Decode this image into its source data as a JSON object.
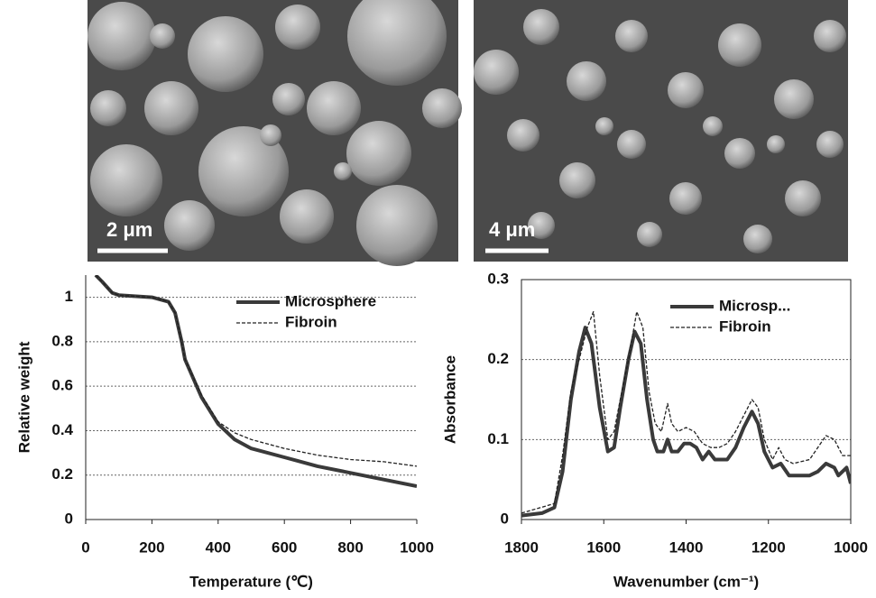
{
  "images": [
    {
      "scale_label": "2 μm"
    },
    {
      "scale_label": "4 μm"
    }
  ],
  "chart_data": [
    {
      "type": "line",
      "x_label": "Temperature (℃)",
      "y_label": "Relative weight",
      "xlim": [
        0,
        1000
      ],
      "xticks": [
        0,
        200,
        400,
        600,
        800,
        1000
      ],
      "ylim": [
        0,
        1.1
      ],
      "yticks": [
        0,
        0.2,
        0.4,
        0.6,
        0.8,
        1
      ],
      "grid": true,
      "legend": "upper right",
      "series": [
        {
          "name": "Microsphere",
          "color": "#3a3a3a",
          "width": 4,
          "dash": "none",
          "x": [
            30,
            50,
            80,
            100,
            200,
            250,
            270,
            290,
            300,
            350,
            400,
            450,
            500,
            600,
            700,
            800,
            900,
            1000
          ],
          "values": [
            1.1,
            1.07,
            1.02,
            1.01,
            1.0,
            0.98,
            0.93,
            0.8,
            0.72,
            0.55,
            0.43,
            0.36,
            0.32,
            0.28,
            0.24,
            0.21,
            0.18,
            0.15
          ]
        },
        {
          "name": "Fibroin",
          "color": "#222222",
          "width": 1.3,
          "dash": "4 2",
          "x": [
            30,
            50,
            80,
            100,
            200,
            250,
            270,
            290,
            300,
            350,
            400,
            450,
            500,
            600,
            700,
            800,
            900,
            1000
          ],
          "values": [
            1.1,
            1.07,
            1.02,
            1.01,
            1.0,
            0.98,
            0.93,
            0.8,
            0.72,
            0.56,
            0.44,
            0.39,
            0.36,
            0.32,
            0.29,
            0.27,
            0.26,
            0.24
          ]
        }
      ]
    },
    {
      "type": "line",
      "x_label": "Wavenumber (cm⁻¹)",
      "y_label": "Absorbance",
      "xlim": [
        1800,
        1000
      ],
      "xticks": [
        1800,
        1600,
        1400,
        1200,
        1000
      ],
      "ylim": [
        0,
        0.3
      ],
      "yticks": [
        0,
        0.1,
        0.2,
        0.3
      ],
      "grid": true,
      "legend": "upper right",
      "series": [
        {
          "name": "Microsp...",
          "color": "#3a3a3a",
          "width": 4,
          "dash": "none",
          "x": [
            1800,
            1750,
            1720,
            1700,
            1680,
            1660,
            1645,
            1630,
            1610,
            1590,
            1575,
            1560,
            1540,
            1525,
            1510,
            1495,
            1480,
            1470,
            1455,
            1445,
            1435,
            1420,
            1405,
            1390,
            1375,
            1360,
            1345,
            1330,
            1300,
            1280,
            1260,
            1240,
            1225,
            1210,
            1190,
            1170,
            1150,
            1100,
            1080,
            1060,
            1040,
            1030,
            1010,
            1000
          ],
          "values": [
            0.005,
            0.008,
            0.015,
            0.06,
            0.15,
            0.21,
            0.24,
            0.22,
            0.14,
            0.085,
            0.09,
            0.14,
            0.2,
            0.235,
            0.22,
            0.15,
            0.1,
            0.085,
            0.085,
            0.1,
            0.085,
            0.085,
            0.095,
            0.095,
            0.09,
            0.075,
            0.085,
            0.075,
            0.075,
            0.09,
            0.115,
            0.135,
            0.12,
            0.085,
            0.065,
            0.07,
            0.055,
            0.055,
            0.06,
            0.07,
            0.065,
            0.055,
            0.065,
            0.045
          ]
        },
        {
          "name": "Fibroin",
          "color": "#222222",
          "width": 1.3,
          "dash": "4 2",
          "x": [
            1800,
            1720,
            1700,
            1680,
            1660,
            1640,
            1625,
            1610,
            1590,
            1575,
            1560,
            1540,
            1520,
            1505,
            1490,
            1475,
            1460,
            1445,
            1435,
            1420,
            1400,
            1380,
            1360,
            1340,
            1320,
            1300,
            1280,
            1260,
            1240,
            1225,
            1210,
            1190,
            1175,
            1160,
            1140,
            1100,
            1080,
            1060,
            1040,
            1020,
            1000
          ],
          "values": [
            0.008,
            0.02,
            0.08,
            0.16,
            0.2,
            0.24,
            0.26,
            0.18,
            0.1,
            0.11,
            0.15,
            0.2,
            0.26,
            0.24,
            0.16,
            0.12,
            0.11,
            0.145,
            0.12,
            0.11,
            0.115,
            0.11,
            0.095,
            0.09,
            0.09,
            0.095,
            0.11,
            0.13,
            0.15,
            0.14,
            0.1,
            0.075,
            0.09,
            0.075,
            0.07,
            0.075,
            0.09,
            0.105,
            0.1,
            0.08,
            0.08
          ]
        }
      ]
    }
  ]
}
